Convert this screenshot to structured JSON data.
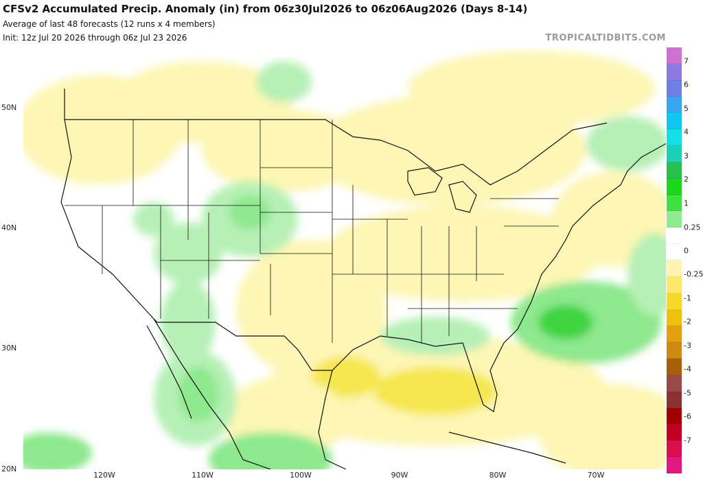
{
  "header": {
    "title": "CFSv2 Accumulated Precip. Anomaly (in) from 06z30Jul2026 to 06z06Aug2026 (Days 8-14)",
    "subtitle": "Average of last 48 forecasts (12 runs x 4 members)",
    "init": "Init: 12z Jul 20 2026 through 06z Jul 23 2026",
    "site": "TROPICALTIDBITS.COM"
  },
  "map": {
    "lat_labels": [
      "50N",
      "40N",
      "30N",
      "20N"
    ],
    "lon_labels": [
      "120W",
      "110W",
      "100W",
      "90W",
      "80W",
      "70W"
    ],
    "anomaly_colors": {
      "dry_light": "#fdf6b4",
      "dry_moderate": "#f6e650",
      "neutral": "#ffffff",
      "wet_light": "#b6f0b6",
      "wet_moderate": "#6ee06e",
      "wet_strong": "#2fc82f"
    }
  },
  "colorbar": {
    "labels": [
      "7",
      "6",
      "5",
      "4",
      "3",
      "2",
      "1",
      "0.25",
      "0",
      "-0.25",
      "-1",
      "-2",
      "-3",
      "-4",
      "-5",
      "-6",
      "-7"
    ],
    "colors": [
      "#d070d0",
      "#8f7be0",
      "#6f7fe6",
      "#3aa6f2",
      "#12c6f2",
      "#15dfe6",
      "#1ecfb8",
      "#27bf4e",
      "#1ed61e",
      "#3fe03f",
      "#90ec90",
      "#ffffff",
      "#ffffff",
      "#fef4b0",
      "#fbe96e",
      "#f4d82a",
      "#f0c010",
      "#e4a010",
      "#cc8a10",
      "#a86008",
      "#9a4a4a",
      "#8a3030",
      "#a00000",
      "#c00020",
      "#d81050",
      "#e01880"
    ]
  }
}
